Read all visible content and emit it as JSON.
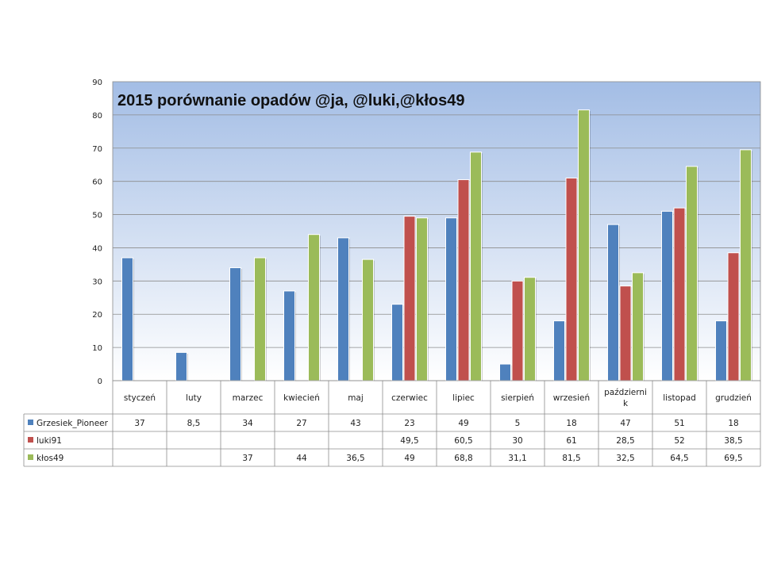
{
  "chart_data": {
    "type": "bar",
    "title": "2015 porównanie opadów @ja, @luki,@kłos49",
    "xlabel": "",
    "ylabel": "",
    "ylim": [
      0,
      90
    ],
    "yticks": [
      0,
      10,
      20,
      30,
      40,
      50,
      60,
      70,
      80,
      90
    ],
    "grid": true,
    "legend": "data-table",
    "categories": [
      [
        "styczeń"
      ],
      [
        "luty"
      ],
      [
        "marzec"
      ],
      [
        "kwiecień"
      ],
      [
        "maj"
      ],
      [
        "czerwiec"
      ],
      [
        "lipiec"
      ],
      [
        "sierpień"
      ],
      [
        "wrzesień"
      ],
      [
        "październi",
        "k"
      ],
      [
        "listopad"
      ],
      [
        "grudzień"
      ]
    ],
    "series": [
      {
        "name": "Grzesiek_Pioneer",
        "color": "#4F81BD",
        "values": [
          37,
          8.5,
          34,
          27,
          43,
          23,
          49,
          5,
          18,
          47,
          51,
          18
        ],
        "labels": [
          "37",
          "8,5",
          "34",
          "27",
          "43",
          "23",
          "49",
          "5",
          "18",
          "47",
          "51",
          "18"
        ]
      },
      {
        "name": "luki91",
        "color": "#C0504D",
        "values": [
          null,
          null,
          null,
          null,
          null,
          49.5,
          60.5,
          30,
          61,
          28.5,
          52,
          38.5
        ],
        "labels": [
          "",
          "",
          "",
          "",
          "",
          "49,5",
          "60,5",
          "30",
          "61",
          "28,5",
          "52",
          "38,5"
        ]
      },
      {
        "name": "kłos49",
        "color": "#9BBB59",
        "values": [
          null,
          null,
          37,
          44,
          36.5,
          49,
          68.8,
          31.1,
          81.5,
          32.5,
          64.5,
          69.5
        ],
        "labels": [
          "",
          "",
          "37",
          "44",
          "36,5",
          "49",
          "68,8",
          "31,1",
          "81,5",
          "32,5",
          "64,5",
          "69,5"
        ]
      }
    ]
  }
}
